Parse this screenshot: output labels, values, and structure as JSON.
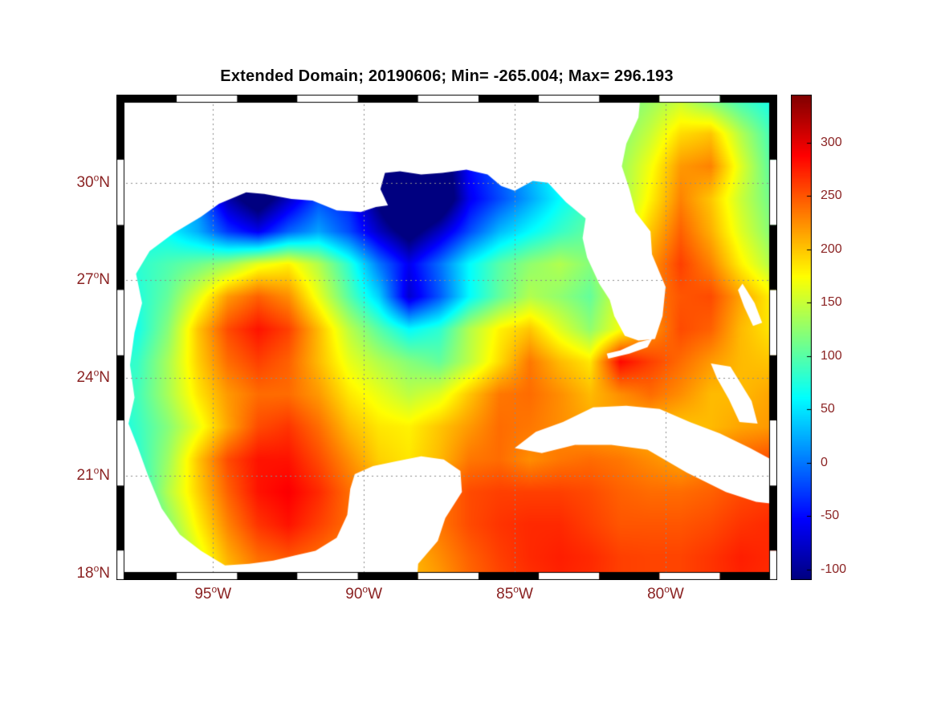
{
  "figure": {
    "title": "Extended Domain; 20190606; Min= -265.004; Max= 296.193"
  },
  "colors": {
    "axis_text": "#8b2323",
    "title_text": "#0a0a0a",
    "grid_line": "#8c8c8c",
    "land": "#ffffff",
    "frame": "#000000"
  },
  "chart_data": {
    "type": "heatmap",
    "title": "Extended Domain; 20190606; Min= -265.004; Max= 296.193",
    "date": "20190606",
    "min_value": -265.004,
    "max_value": 296.193,
    "deg_symbol": "o",
    "lon_range": [
      -98.2,
      -76.3
    ],
    "lat_range": [
      17.8,
      32.7
    ],
    "x_ticks": [
      {
        "lon": -95,
        "label": "95",
        "hemisphere": "W"
      },
      {
        "lon": -90,
        "label": "90",
        "hemisphere": "W"
      },
      {
        "lon": -85,
        "label": "85",
        "hemisphere": "W"
      },
      {
        "lon": -80,
        "label": "80",
        "hemisphere": "W"
      }
    ],
    "y_ticks": [
      {
        "lat": 30,
        "label": "30",
        "hemisphere": "N"
      },
      {
        "lat": 27,
        "label": "27",
        "hemisphere": "N"
      },
      {
        "lat": 24,
        "label": "24",
        "hemisphere": "N"
      },
      {
        "lat": 21,
        "label": "21",
        "hemisphere": "N"
      },
      {
        "lat": 18,
        "label": "18",
        "hemisphere": "N"
      }
    ],
    "colorbar": {
      "colormap": "jet",
      "min": -110,
      "max": 345,
      "ticks": [
        300,
        250,
        200,
        150,
        100,
        50,
        0,
        -50,
        -100
      ]
    },
    "grid": {
      "lon_start": -98.5,
      "dlon": 1.0,
      "lat_start": 32.5,
      "dlat": -1.0,
      "values": [
        [
          60,
          60,
          60,
          60,
          -40,
          -60,
          -40,
          0,
          -40,
          -120,
          -160,
          -120,
          -40,
          0,
          40,
          70,
          90,
          110,
          130,
          150,
          120,
          90,
          70
        ],
        [
          60,
          60,
          60,
          50,
          -40,
          -70,
          -40,
          0,
          -60,
          -140,
          -180,
          -140,
          -50,
          0,
          40,
          70,
          100,
          120,
          150,
          190,
          200,
          140,
          90
        ],
        [
          60,
          60,
          55,
          30,
          -60,
          -120,
          -70,
          -20,
          -60,
          -150,
          -200,
          -150,
          -50,
          -10,
          30,
          70,
          100,
          130,
          170,
          220,
          230,
          160,
          100
        ],
        [
          60,
          60,
          50,
          10,
          -90,
          -140,
          -80,
          -20,
          -40,
          -120,
          -210,
          -160,
          -60,
          -20,
          20,
          60,
          90,
          130,
          180,
          230,
          200,
          150,
          110
        ],
        [
          65,
          70,
          60,
          25,
          -30,
          -60,
          -10,
          20,
          -20,
          -80,
          -130,
          -80,
          -20,
          30,
          60,
          85,
          105,
          140,
          200,
          245,
          210,
          160,
          120
        ],
        [
          70,
          80,
          95,
          110,
          130,
          165,
          180,
          140,
          80,
          0,
          -60,
          -5,
          60,
          100,
          125,
          140,
          120,
          150,
          220,
          260,
          230,
          180,
          140
        ],
        [
          65,
          75,
          105,
          160,
          220,
          245,
          225,
          165,
          100,
          40,
          -75,
          -15,
          60,
          105,
          140,
          125,
          105,
          160,
          230,
          250,
          255,
          215,
          180
        ],
        [
          60,
          70,
          120,
          200,
          255,
          280,
          260,
          205,
          145,
          100,
          60,
          80,
          140,
          180,
          200,
          160,
          125,
          170,
          220,
          255,
          245,
          205,
          185
        ],
        [
          70,
          85,
          135,
          195,
          240,
          260,
          245,
          205,
          165,
          140,
          120,
          105,
          145,
          190,
          235,
          205,
          185,
          285,
          260,
          240,
          220,
          205,
          200
        ],
        [
          70,
          90,
          135,
          185,
          220,
          240,
          240,
          220,
          185,
          165,
          145,
          160,
          200,
          235,
          240,
          225,
          205,
          225,
          240,
          225,
          205,
          205,
          215
        ],
        [
          55,
          85,
          120,
          165,
          215,
          255,
          265,
          240,
          205,
          185,
          180,
          200,
          220,
          240,
          235,
          225,
          215,
          210,
          205,
          200,
          205,
          215,
          220
        ],
        [
          40,
          80,
          130,
          200,
          255,
          280,
          280,
          255,
          225,
          195,
          185,
          205,
          235,
          240,
          225,
          235,
          240,
          235,
          225,
          215,
          230,
          245,
          255
        ],
        [
          25,
          70,
          140,
          195,
          245,
          280,
          290,
          270,
          240,
          220,
          220,
          235,
          255,
          260,
          260,
          260,
          255,
          245,
          240,
          240,
          245,
          255,
          260
        ],
        [
          10,
          50,
          120,
          180,
          230,
          265,
          280,
          260,
          240,
          225,
          220,
          235,
          255,
          265,
          270,
          270,
          260,
          250,
          250,
          250,
          255,
          265,
          270
        ],
        [
          20,
          40,
          100,
          160,
          210,
          240,
          250,
          240,
          225,
          210,
          205,
          225,
          245,
          260,
          270,
          275,
          270,
          260,
          258,
          258,
          265,
          275,
          270
        ],
        [
          40,
          60,
          100,
          150,
          195,
          225,
          235,
          230,
          215,
          205,
          205,
          215,
          240,
          255,
          265,
          272,
          268,
          260,
          258,
          258,
          265,
          272,
          268
        ]
      ]
    },
    "land_polygons": {
      "north_america_mexico_yucatan": [
        [
          -98.4,
          33.0
        ],
        [
          -80.8,
          33.0
        ],
        [
          -80.9,
          32.0
        ],
        [
          -81.3,
          31.2
        ],
        [
          -81.45,
          30.5
        ],
        [
          -81.2,
          29.8
        ],
        [
          -81.0,
          29.1
        ],
        [
          -80.5,
          28.5
        ],
        [
          -80.45,
          27.8
        ],
        [
          -80.0,
          26.8
        ],
        [
          -80.1,
          25.9
        ],
        [
          -80.35,
          25.2
        ],
        [
          -80.9,
          25.15
        ],
        [
          -81.35,
          25.3
        ],
        [
          -81.7,
          25.9
        ],
        [
          -81.85,
          26.4
        ],
        [
          -82.2,
          26.9
        ],
        [
          -82.6,
          27.7
        ],
        [
          -82.75,
          28.3
        ],
        [
          -82.65,
          28.9
        ],
        [
          -83.3,
          29.4
        ],
        [
          -83.9,
          30.0
        ],
        [
          -84.4,
          30.05
        ],
        [
          -85.0,
          29.75
        ],
        [
          -85.45,
          29.9
        ],
        [
          -85.9,
          30.25
        ],
        [
          -86.6,
          30.4
        ],
        [
          -87.4,
          30.3
        ],
        [
          -88.1,
          30.25
        ],
        [
          -88.8,
          30.35
        ],
        [
          -89.3,
          30.3
        ],
        [
          -89.45,
          29.8
        ],
        [
          -89.2,
          29.3
        ],
        [
          -89.6,
          29.25
        ],
        [
          -90.1,
          29.1
        ],
        [
          -90.9,
          29.15
        ],
        [
          -91.7,
          29.45
        ],
        [
          -92.4,
          29.5
        ],
        [
          -93.3,
          29.65
        ],
        [
          -93.9,
          29.7
        ],
        [
          -94.8,
          29.35
        ],
        [
          -95.4,
          28.95
        ],
        [
          -96.3,
          28.45
        ],
        [
          -97.1,
          27.9
        ],
        [
          -97.55,
          27.2
        ],
        [
          -97.35,
          26.3
        ],
        [
          -97.6,
          25.4
        ],
        [
          -97.75,
          24.4
        ],
        [
          -97.6,
          23.4
        ],
        [
          -97.8,
          22.6
        ],
        [
          -97.5,
          21.9
        ],
        [
          -97.15,
          21.0
        ],
        [
          -96.7,
          20.0
        ],
        [
          -96.1,
          19.2
        ],
        [
          -95.4,
          18.7
        ],
        [
          -94.6,
          18.25
        ],
        [
          -93.8,
          18.3
        ],
        [
          -93.0,
          18.4
        ],
        [
          -92.3,
          18.55
        ],
        [
          -91.6,
          18.7
        ],
        [
          -90.9,
          19.1
        ],
        [
          -90.55,
          19.8
        ],
        [
          -90.45,
          20.6
        ],
        [
          -90.3,
          21.05
        ],
        [
          -89.7,
          21.3
        ],
        [
          -88.9,
          21.45
        ],
        [
          -88.1,
          21.6
        ],
        [
          -87.35,
          21.5
        ],
        [
          -86.8,
          21.15
        ],
        [
          -86.75,
          20.5
        ],
        [
          -87.3,
          19.7
        ],
        [
          -87.55,
          19.0
        ],
        [
          -88.2,
          18.3
        ],
        [
          -88.3,
          17.0
        ],
        [
          -98.4,
          17.0
        ]
      ],
      "cuba": [
        [
          -85.0,
          21.85
        ],
        [
          -84.3,
          22.35
        ],
        [
          -83.4,
          22.65
        ],
        [
          -82.4,
          23.1
        ],
        [
          -81.3,
          23.15
        ],
        [
          -80.2,
          23.05
        ],
        [
          -79.2,
          22.65
        ],
        [
          -78.2,
          22.3
        ],
        [
          -77.2,
          21.85
        ],
        [
          -76.1,
          21.3
        ],
        [
          -76.0,
          20.1
        ],
        [
          -77.0,
          20.2
        ],
        [
          -78.0,
          20.5
        ],
        [
          -79.3,
          21.1
        ],
        [
          -80.6,
          21.8
        ],
        [
          -81.8,
          21.95
        ],
        [
          -83.0,
          21.95
        ],
        [
          -84.1,
          21.7
        ]
      ],
      "great_bahama_bank": [
        [
          -78.5,
          24.45
        ],
        [
          -77.85,
          24.35
        ],
        [
          -77.15,
          23.3
        ],
        [
          -76.95,
          22.6
        ],
        [
          -77.55,
          22.65
        ],
        [
          -77.9,
          23.35
        ],
        [
          -78.3,
          24.0
        ]
      ],
      "abaco_bahamas": [
        [
          -77.45,
          26.9
        ],
        [
          -77.05,
          26.3
        ],
        [
          -76.8,
          25.7
        ],
        [
          -77.1,
          25.6
        ],
        [
          -77.4,
          26.2
        ],
        [
          -77.6,
          26.7
        ]
      ],
      "florida_keys": [
        [
          -81.9,
          24.6
        ],
        [
          -81.2,
          24.75
        ],
        [
          -80.6,
          24.95
        ],
        [
          -80.45,
          25.2
        ],
        [
          -80.9,
          25.1
        ],
        [
          -81.5,
          24.85
        ],
        [
          -81.95,
          24.75
        ]
      ]
    }
  }
}
